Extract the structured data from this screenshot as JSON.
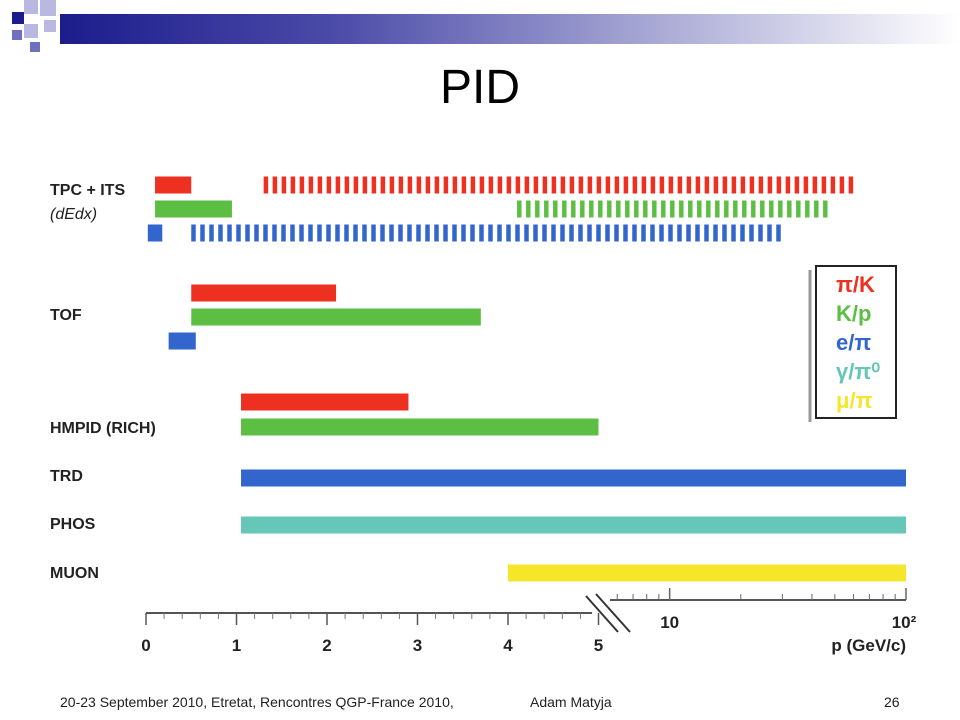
{
  "slide": {
    "title": "PID",
    "footer_text": "20-23 September 2010, Etretat, Rencontres QGP-France 2010,",
    "footer_author": "Adam Matyja",
    "page_number": "26",
    "accent_colors": [
      "#1c1c8c",
      "#7070c0",
      "#b8b8e0"
    ]
  },
  "chart_data": {
    "type": "bar",
    "title": "",
    "xlabel": "p (GeV/c)",
    "x_axis": {
      "segments": [
        {
          "scale": "linear",
          "range": [
            0,
            5
          ],
          "ticks": [
            "0",
            "1",
            "2",
            "3",
            "4",
            "5"
          ]
        },
        {
          "scale": "log",
          "range": [
            5,
            100
          ],
          "ticks": [
            "10",
            "10²"
          ]
        }
      ]
    },
    "colors": {
      "pi/K": "#ee3020",
      "K/p": "#5cbf44",
      "e/pi": "#3366cc",
      "gamma/pi0": "#66c6b8",
      "mu/pi": "#f5e62a"
    },
    "legend": {
      "position": "right",
      "entries": [
        {
          "key": "pi/K",
          "label": "π/K",
          "color": "#ee3020"
        },
        {
          "key": "K/p",
          "label": "K/p",
          "color": "#5cbf44"
        },
        {
          "key": "e/pi",
          "label": "e/π",
          "color": "#3366cc"
        },
        {
          "key": "gamma/pi0",
          "label": "γ/π⁰",
          "color": "#66c6b8"
        },
        {
          "key": "mu/pi",
          "label": "μ/π",
          "color": "#f5e62a"
        }
      ]
    },
    "detectors": [
      {
        "name": "TPC + ITS",
        "sub": "(dEdx)",
        "bars": [
          {
            "series": "pi/K",
            "from": 0.1,
            "to": 0.5,
            "style": "solid"
          },
          {
            "series": "pi/K",
            "from": 1.3,
            "to": 60,
            "style": "dashed"
          },
          {
            "series": "K/p",
            "from": 0.1,
            "to": 0.95,
            "style": "solid"
          },
          {
            "series": "K/p",
            "from": 4.1,
            "to": 50,
            "style": "dashed"
          },
          {
            "series": "e/pi",
            "from": 0.02,
            "to": 0.18,
            "style": "solid"
          },
          {
            "series": "e/pi",
            "from": 0.5,
            "to": 30,
            "style": "dashed"
          }
        ]
      },
      {
        "name": "TOF",
        "sub": "",
        "bars": [
          {
            "series": "pi/K",
            "from": 0.5,
            "to": 2.1,
            "style": "solid"
          },
          {
            "series": "K/p",
            "from": 0.5,
            "to": 3.7,
            "style": "solid"
          },
          {
            "series": "e/pi",
            "from": 0.25,
            "to": 0.55,
            "style": "solid"
          }
        ]
      },
      {
        "name": "HMPID (RICH)",
        "sub": "",
        "bars": [
          {
            "series": "pi/K",
            "from": 1.05,
            "to": 2.9,
            "style": "solid"
          },
          {
            "series": "K/p",
            "from": 1.05,
            "to": 5.0,
            "style": "solid"
          }
        ]
      },
      {
        "name": "TRD",
        "sub": "",
        "bars": [
          {
            "series": "e/pi",
            "from": 1.05,
            "to": 100,
            "style": "solid"
          }
        ]
      },
      {
        "name": "PHOS",
        "sub": "",
        "bars": [
          {
            "series": "gamma/pi0",
            "from": 1.05,
            "to": 100,
            "style": "solid"
          }
        ]
      },
      {
        "name": "MUON",
        "sub": "",
        "bars": [
          {
            "series": "mu/pi",
            "from": 4.0,
            "to": 100,
            "style": "solid"
          }
        ]
      }
    ]
  }
}
